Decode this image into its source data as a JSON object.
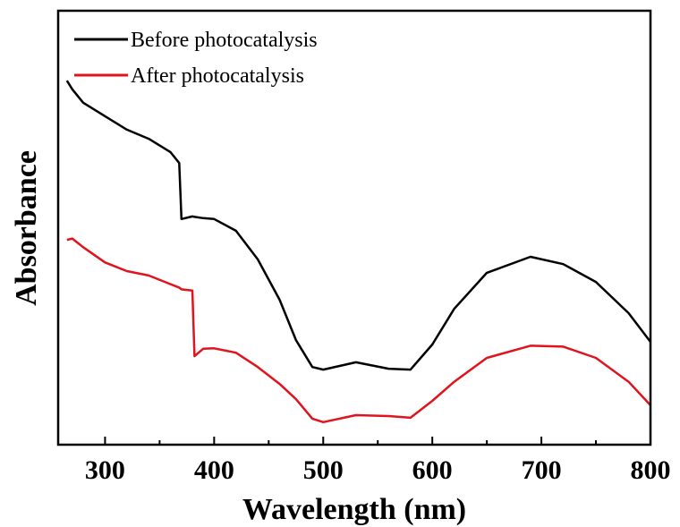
{
  "chart_data": {
    "type": "line",
    "xlabel": "Wavelength (nm)",
    "ylabel": "Absorbance",
    "x": [
      265,
      270,
      280,
      300,
      320,
      340,
      360,
      368,
      370,
      380,
      382,
      390,
      400,
      420,
      440,
      460,
      475,
      490,
      500,
      530,
      560,
      580,
      600,
      620,
      650,
      690,
      720,
      750,
      780,
      800
    ],
    "series": [
      {
        "name": "Before photocatalysis",
        "color": "#000000",
        "values": [
          0.839,
          0.819,
          0.788,
          0.757,
          0.726,
          0.705,
          0.674,
          0.649,
          0.52,
          0.526,
          0.525,
          0.522,
          0.52,
          0.493,
          0.427,
          0.334,
          0.241,
          0.179,
          0.173,
          0.19,
          0.175,
          0.173,
          0.231,
          0.313,
          0.396,
          0.433,
          0.416,
          0.375,
          0.303,
          0.237
        ]
      },
      {
        "name": "After photocatalysis",
        "color": "#e0141e",
        "values": [
          0.472,
          0.475,
          0.455,
          0.42,
          0.4,
          0.39,
          0.37,
          0.362,
          0.358,
          0.355,
          0.204,
          0.221,
          0.222,
          0.212,
          0.179,
          0.14,
          0.105,
          0.06,
          0.052,
          0.068,
          0.066,
          0.062,
          0.101,
          0.145,
          0.2,
          0.228,
          0.226,
          0.2,
          0.145,
          0.091
        ]
      }
    ],
    "xlim": [
      257,
      800
    ],
    "xticks": [
      300,
      400,
      500,
      600,
      700,
      800
    ],
    "xminorticks": [
      350,
      450,
      550,
      650,
      750
    ],
    "ylim": [
      0,
      1
    ],
    "legend": "upper left"
  }
}
